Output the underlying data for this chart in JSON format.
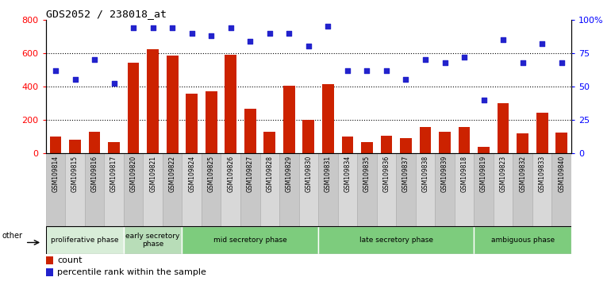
{
  "title": "GDS2052 / 238018_at",
  "samples": [
    "GSM109814",
    "GSM109815",
    "GSM109816",
    "GSM109817",
    "GSM109820",
    "GSM109821",
    "GSM109822",
    "GSM109824",
    "GSM109825",
    "GSM109826",
    "GSM109827",
    "GSM109828",
    "GSM109829",
    "GSM109830",
    "GSM109831",
    "GSM109834",
    "GSM109835",
    "GSM109836",
    "GSM109837",
    "GSM109838",
    "GSM109839",
    "GSM109818",
    "GSM109819",
    "GSM109823",
    "GSM109832",
    "GSM109833",
    "GSM109840"
  ],
  "counts": [
    100,
    80,
    130,
    65,
    540,
    625,
    585,
    355,
    370,
    590,
    265,
    130,
    405,
    200,
    415,
    100,
    65,
    105,
    90,
    155,
    130,
    155,
    40,
    300,
    120,
    240,
    125
  ],
  "percentiles": [
    62,
    55,
    70,
    52,
    94,
    94,
    94,
    90,
    88,
    94,
    84,
    90,
    90,
    80,
    95,
    62,
    62,
    62,
    55,
    70,
    68,
    72,
    40,
    85,
    68,
    82,
    68
  ],
  "phases": [
    {
      "label": "proliferative phase",
      "start": 0,
      "end": 4,
      "color": "#d8edd8"
    },
    {
      "label": "early secretory\nphase",
      "start": 4,
      "end": 7,
      "color": "#b8ddb8"
    },
    {
      "label": "mid secretory phase",
      "start": 7,
      "end": 14,
      "color": "#7dcc7d"
    },
    {
      "label": "late secretory phase",
      "start": 14,
      "end": 22,
      "color": "#7dcc7d"
    },
    {
      "label": "ambiguous phase",
      "start": 22,
      "end": 27,
      "color": "#7dcc7d"
    }
  ],
  "bar_color": "#cc2200",
  "dot_color": "#2222cc",
  "left_ylim": [
    0,
    800
  ],
  "right_ylim": [
    0,
    100
  ],
  "left_yticks": [
    0,
    200,
    400,
    600,
    800
  ],
  "right_yticks": [
    0,
    25,
    50,
    75,
    100
  ],
  "right_yticklabels": [
    "0",
    "25",
    "50",
    "75",
    "100%"
  ],
  "grid_lines": [
    200,
    400,
    600
  ],
  "xtick_box_colors": [
    "#c8c8c8",
    "#d8d8d8"
  ]
}
